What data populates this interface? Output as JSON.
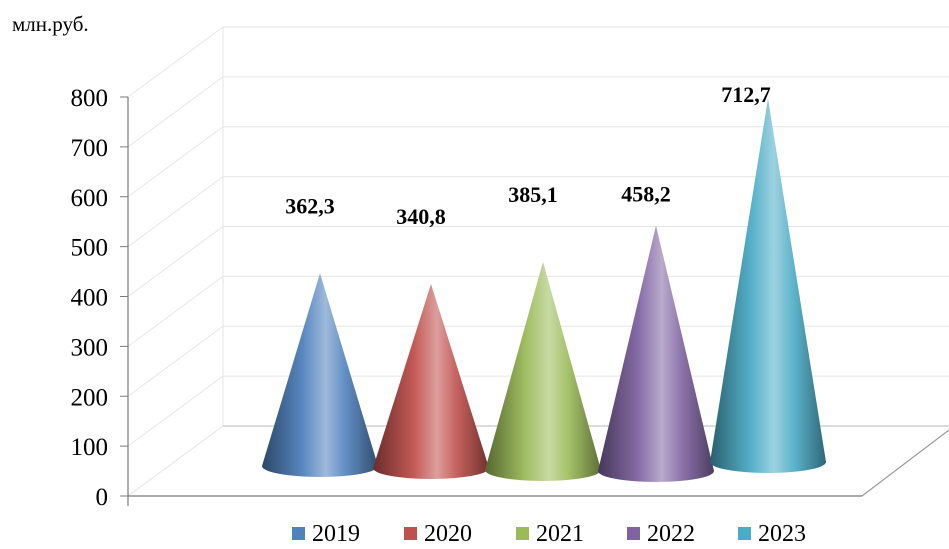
{
  "chart_data": {
    "type": "bar",
    "unit_label": "млн.руб.",
    "categories": [
      "2019",
      "2020",
      "2021",
      "2022",
      "2023"
    ],
    "series": [
      {
        "name": "2019",
        "value": 362.3,
        "label": "362,3",
        "color": "#4f81bd"
      },
      {
        "name": "2020",
        "value": 340.8,
        "label": "340,8",
        "color": "#c0504d"
      },
      {
        "name": "2021",
        "value": 385.1,
        "label": "385,1",
        "color": "#9bbb59"
      },
      {
        "name": "2022",
        "value": 458.2,
        "label": "458,2",
        "color": "#8064a2"
      },
      {
        "name": "2023",
        "value": 712.7,
        "label": "712,7",
        "color": "#4bacc6"
      }
    ],
    "y_ticks": [
      "0",
      "100",
      "200",
      "300",
      "400",
      "500",
      "600",
      "700",
      "800"
    ],
    "ylim": [
      0,
      800
    ],
    "grid": true,
    "legend": "bottom",
    "mark_shape": "cone-3d"
  }
}
